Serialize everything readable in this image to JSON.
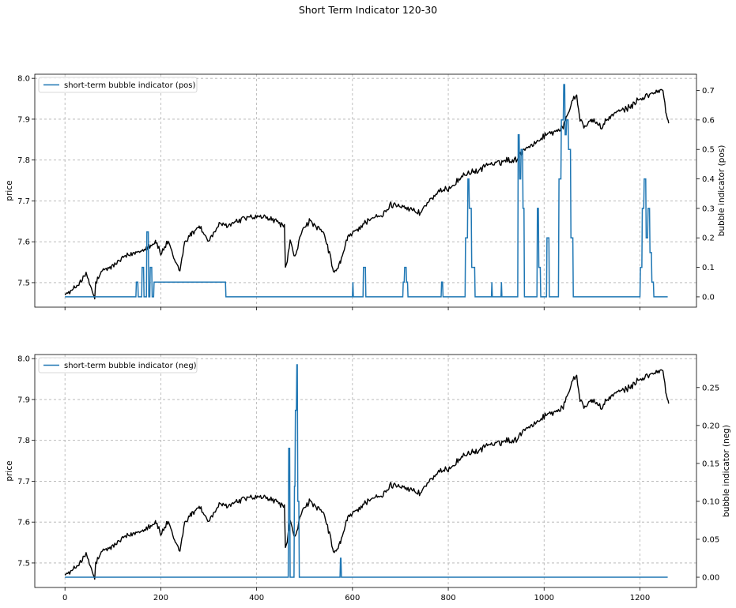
{
  "figure": {
    "title": "Short Term Indicator 120-30"
  },
  "colors": {
    "price": "#000000",
    "indicator": "#1f77b4",
    "grid": "#b0b0b0"
  },
  "chart_data": [
    {
      "type": "line",
      "name": "top-panel",
      "legend": {
        "label": "short-term bubble indicator (pos)",
        "placement": "upper-left"
      },
      "ylabel_left": "price",
      "ylabel_right": "bubble indicator (pos)",
      "xlim": [
        -63,
        1318
      ],
      "ylim_left": [
        7.44,
        8.01
      ],
      "ylim_right": [
        -0.035,
        0.755
      ],
      "x_ticks": [
        0,
        200,
        400,
        600,
        800,
        1000,
        1200
      ],
      "x_tick_labels_visible": false,
      "y_left_ticks": [
        "7.5",
        "7.6",
        "7.7",
        "7.8",
        "7.9",
        "8.0"
      ],
      "y_right_ticks": [
        "0.0",
        "0.1",
        "0.2",
        "0.3",
        "0.4",
        "0.5",
        "0.6",
        "0.7"
      ],
      "grid": true,
      "price_series": {
        "x": [
          0,
          15,
          30,
          45,
          62,
          64,
          80,
          100,
          120,
          140,
          160,
          175,
          190,
          200,
          215,
          230,
          240,
          250,
          265,
          280,
          300,
          320,
          340,
          360,
          380,
          400,
          420,
          440,
          458,
          460,
          470,
          480,
          495,
          510,
          520,
          540,
          555,
          560,
          575,
          590,
          610,
          620,
          640,
          660,
          680,
          700,
          720,
          740,
          760,
          780,
          800,
          820,
          840,
          860,
          880,
          900,
          920,
          940,
          960,
          980,
          1000,
          1020,
          1040,
          1060,
          1068,
          1075,
          1085,
          1100,
          1120,
          1140,
          1160,
          1180,
          1200,
          1220,
          1240,
          1248,
          1255,
          1260
        ],
        "y": [
          7.47,
          7.48,
          7.5,
          7.52,
          7.46,
          7.5,
          7.53,
          7.54,
          7.56,
          7.57,
          7.58,
          7.59,
          7.6,
          7.57,
          7.6,
          7.55,
          7.53,
          7.6,
          7.62,
          7.64,
          7.6,
          7.64,
          7.64,
          7.65,
          7.66,
          7.66,
          7.66,
          7.65,
          7.64,
          7.53,
          7.6,
          7.56,
          7.63,
          7.65,
          7.64,
          7.62,
          7.56,
          7.52,
          7.55,
          7.61,
          7.63,
          7.64,
          7.66,
          7.66,
          7.69,
          7.69,
          7.68,
          7.67,
          7.7,
          7.72,
          7.73,
          7.75,
          7.77,
          7.77,
          7.79,
          7.79,
          7.8,
          7.8,
          7.83,
          7.84,
          7.86,
          7.87,
          7.88,
          7.95,
          7.96,
          7.9,
          7.88,
          7.9,
          7.88,
          7.91,
          7.92,
          7.93,
          7.95,
          7.96,
          7.97,
          7.97,
          7.91,
          7.89
        ]
      },
      "indicator_series": {
        "x": [
          0,
          148,
          149,
          152,
          153,
          160,
          161,
          164,
          165,
          170,
          171,
          174,
          175,
          177,
          178,
          181,
          182,
          185,
          186,
          335,
          336,
          337,
          600,
          601,
          602,
          622,
          623,
          627,
          628,
          705,
          706,
          708,
          709,
          712,
          713,
          715,
          716,
          785,
          786,
          788,
          789,
          835,
          836,
          840,
          841,
          843,
          844,
          848,
          849,
          855,
          856,
          890,
          891,
          892,
          910,
          911,
          912,
          945,
          946,
          948,
          949,
          951,
          952,
          955,
          956,
          958,
          959,
          985,
          986,
          988,
          989,
          992,
          993,
          1005,
          1006,
          1010,
          1011,
          1030,
          1031,
          1035,
          1036,
          1040,
          1041,
          1043,
          1044,
          1046,
          1047,
          1050,
          1051,
          1055,
          1056,
          1060,
          1061,
          1200,
          1201,
          1204,
          1205,
          1208,
          1209,
          1212,
          1213,
          1216,
          1217,
          1220,
          1221,
          1224,
          1225,
          1228,
          1229,
          1232,
          1233,
          1258
        ],
        "y": [
          0,
          0,
          0.05,
          0.05,
          0,
          0,
          0.1,
          0.1,
          0,
          0,
          0.22,
          0.22,
          0,
          0,
          0.1,
          0.1,
          0,
          0,
          0.05,
          0.05,
          0,
          0,
          0,
          0.05,
          0,
          0,
          0.1,
          0.1,
          0,
          0,
          0.05,
          0.05,
          0.1,
          0.1,
          0.05,
          0.05,
          0,
          0,
          0.05,
          0.05,
          0,
          0,
          0.2,
          0.2,
          0.4,
          0.4,
          0.3,
          0.3,
          0.1,
          0.1,
          0,
          0,
          0.05,
          0,
          0,
          0.05,
          0,
          0,
          0.55,
          0.55,
          0.4,
          0.4,
          0.5,
          0.5,
          0.3,
          0.3,
          0,
          0,
          0.3,
          0.3,
          0.1,
          0.1,
          0,
          0,
          0.2,
          0.2,
          0,
          0,
          0.4,
          0.4,
          0.6,
          0.6,
          0.72,
          0.72,
          0.55,
          0.55,
          0.6,
          0.6,
          0.5,
          0.5,
          0.2,
          0.2,
          0,
          0,
          0.1,
          0.1,
          0.3,
          0.3,
          0.4,
          0.4,
          0.2,
          0.2,
          0.3,
          0.3,
          0.15,
          0.15,
          0.05,
          0.05,
          0,
          0,
          0,
          0
        ]
      }
    },
    {
      "type": "line",
      "name": "bottom-panel",
      "legend": {
        "label": "short-term bubble indicator (neg)",
        "placement": "upper-left"
      },
      "ylabel_left": "price",
      "ylabel_right": "bubble indicator (neg)",
      "xlim": [
        -63,
        1318
      ],
      "ylim_left": [
        7.44,
        8.01
      ],
      "ylim_right": [
        -0.0135,
        0.2935
      ],
      "x_ticks": [
        0,
        200,
        400,
        600,
        800,
        1000,
        1200
      ],
      "x_tick_labels": [
        "0",
        "200",
        "400",
        "600",
        "800",
        "1000",
        "1200"
      ],
      "x_tick_labels_visible": true,
      "y_left_ticks": [
        "7.5",
        "7.6",
        "7.7",
        "7.8",
        "7.9",
        "8.0"
      ],
      "y_right_ticks": [
        "0.00",
        "0.05",
        "0.10",
        "0.15",
        "0.20",
        "0.25"
      ],
      "grid": true,
      "indicator_series": {
        "x": [
          0,
          466,
          467,
          469,
          470,
          478,
          479,
          480,
          481,
          483,
          484,
          485,
          486,
          488,
          489,
          574,
          575,
          576,
          577,
          1258
        ],
        "y": [
          0,
          0,
          0.17,
          0.17,
          0,
          0,
          0.12,
          0.12,
          0.22,
          0.22,
          0.28,
          0.28,
          0.1,
          0.1,
          0,
          0,
          0.025,
          0.025,
          0,
          0
        ]
      }
    }
  ]
}
